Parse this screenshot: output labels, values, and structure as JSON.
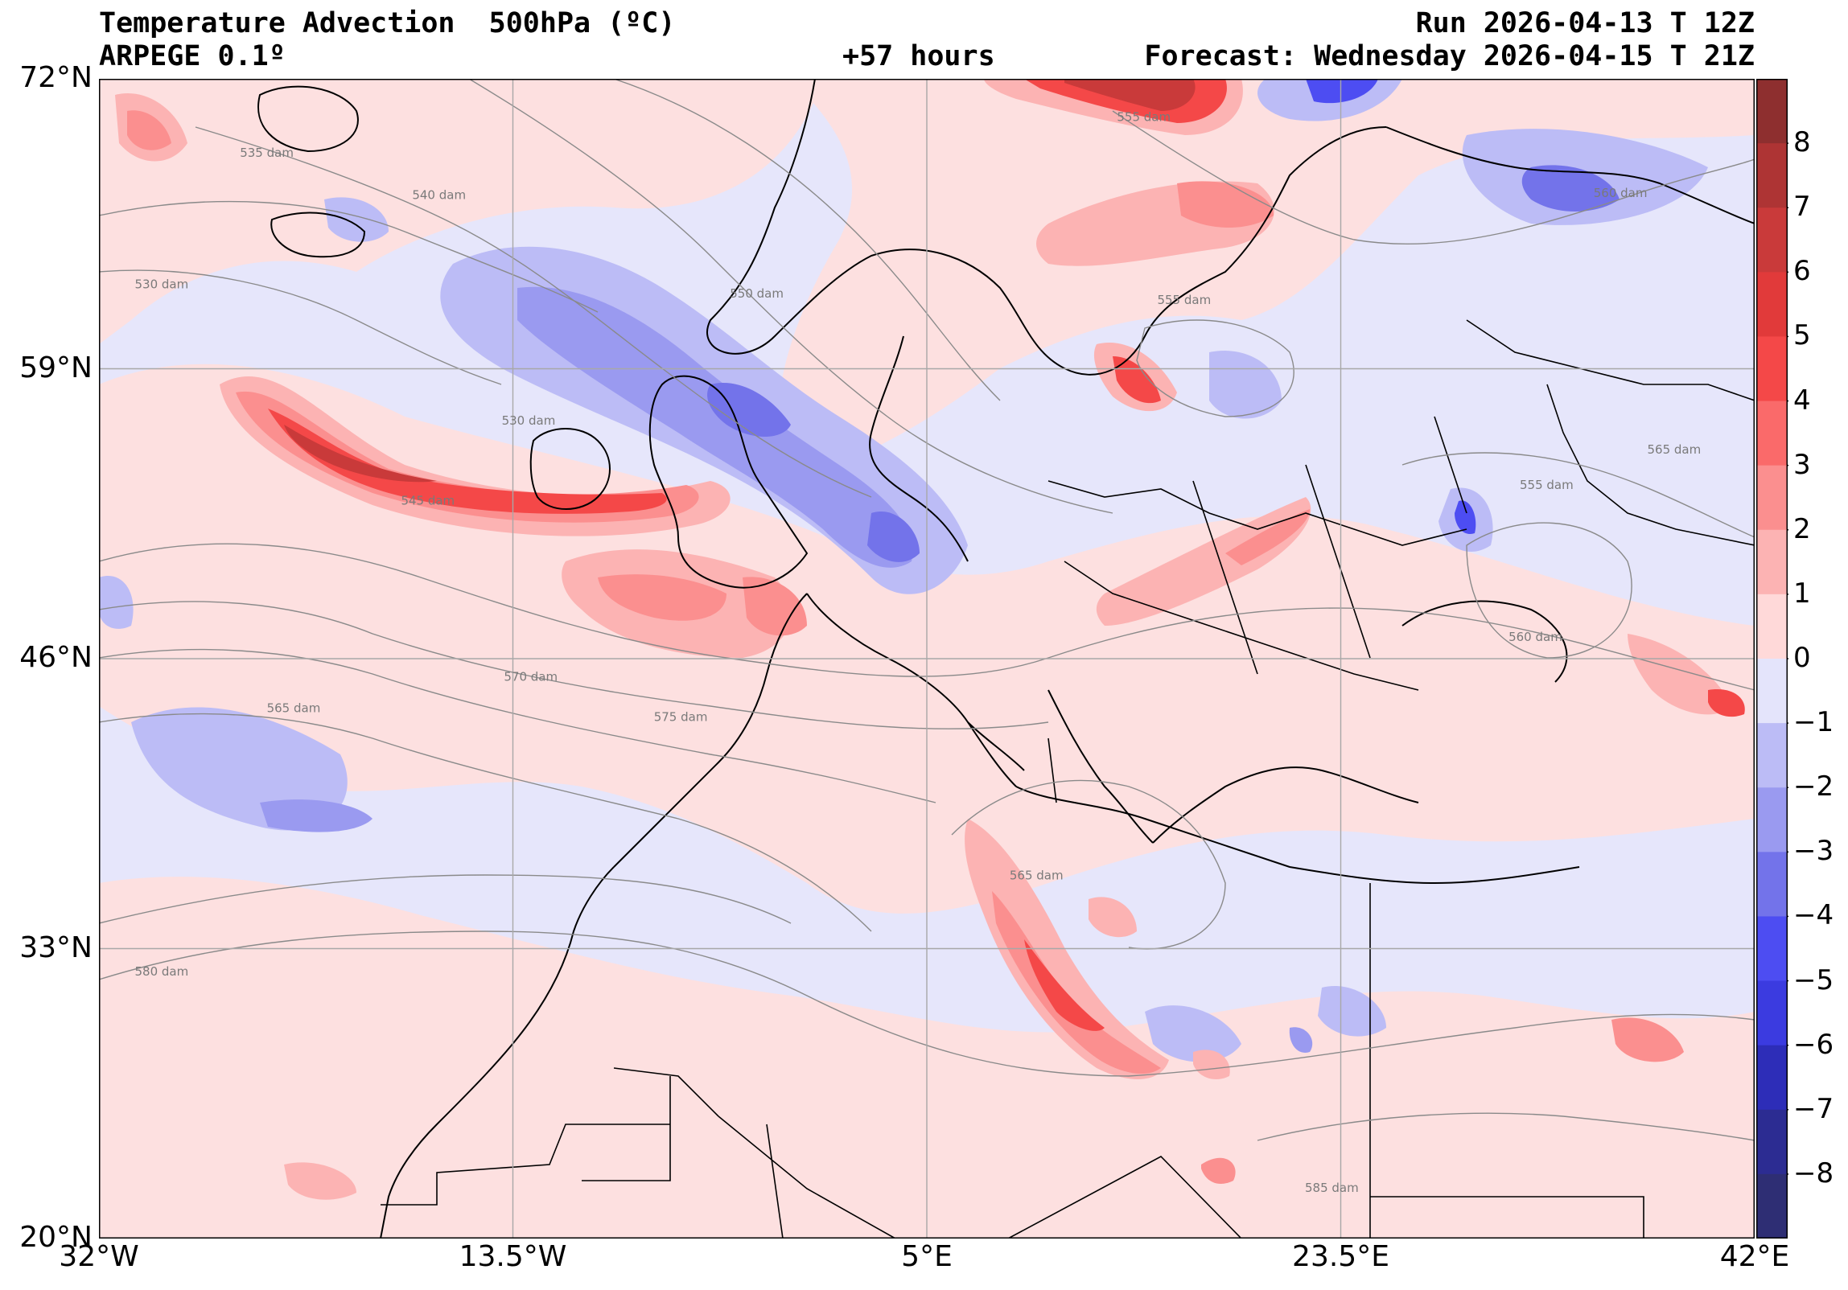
{
  "header": {
    "title": "Temperature Advection  500hPa (ºC)",
    "model": "ARPEGE 0.1º",
    "run": "Run 2026-04-13 T 12Z",
    "lead": "+57 hours",
    "forecast": "Forecast: Wednesday 2026-04-15 T 21Z"
  },
  "map": {
    "lat_range": [
      20,
      72
    ],
    "lon_range": [
      -32,
      42
    ],
    "lat_ticks": [
      {
        "value": 72,
        "label": "72°N"
      },
      {
        "value": 59,
        "label": "59°N"
      },
      {
        "value": 46,
        "label": "46°N"
      },
      {
        "value": 33,
        "label": "33°N"
      },
      {
        "value": 20,
        "label": "20°N"
      }
    ],
    "lon_ticks": [
      {
        "value": -32,
        "label": "32°W"
      },
      {
        "value": -13.5,
        "label": "13.5°W"
      },
      {
        "value": 5,
        "label": "5°E"
      },
      {
        "value": 23.5,
        "label": "23.5°E"
      },
      {
        "value": 42,
        "label": "42°E"
      }
    ],
    "contour_labels": [
      {
        "text": "535 dam",
        "lat": 68.5,
        "lon": -24.5
      },
      {
        "text": "540 dam",
        "lat": 66.6,
        "lon": -16.8
      },
      {
        "text": "530 dam",
        "lat": 62.6,
        "lon": -29.2
      },
      {
        "text": "550 dam",
        "lat": 62.2,
        "lon": -2.6
      },
      {
        "text": "530 dam",
        "lat": 56.5,
        "lon": -12.8
      },
      {
        "text": "545 dam",
        "lat": 52.9,
        "lon": -17.3
      },
      {
        "text": "555 dam",
        "lat": 70.1,
        "lon": 14.7
      },
      {
        "text": "555 dam",
        "lat": 61.9,
        "lon": 16.5
      },
      {
        "text": "560 dam",
        "lat": 66.7,
        "lon": 36.0
      },
      {
        "text": "565 dam",
        "lat": 55.2,
        "lon": 38.4
      },
      {
        "text": "555 dam",
        "lat": 53.6,
        "lon": 32.7
      },
      {
        "text": "560 dam",
        "lat": 46.8,
        "lon": 32.2
      },
      {
        "text": "570 dam",
        "lat": 45.0,
        "lon": -12.7
      },
      {
        "text": "565 dam",
        "lat": 43.6,
        "lon": -23.3
      },
      {
        "text": "575 dam",
        "lat": 43.2,
        "lon": -6.0
      },
      {
        "text": "565 dam",
        "lat": 36.1,
        "lon": 9.9
      },
      {
        "text": "580 dam",
        "lat": 31.8,
        "lon": -29.2
      },
      {
        "text": "585 dam",
        "lat": 22.1,
        "lon": 23.1
      }
    ]
  },
  "colorbar": {
    "ticks": [
      "8",
      "7",
      "6",
      "5",
      "4",
      "3",
      "2",
      "1",
      "0",
      "−1",
      "−2",
      "−3",
      "−4",
      "−5",
      "−6",
      "−7",
      "−8"
    ],
    "values": [
      9,
      8,
      7,
      6,
      5,
      4,
      3,
      2,
      1,
      0,
      -1,
      -2,
      -3,
      -4,
      -5,
      -6,
      -7,
      -8,
      -9
    ],
    "colors": [
      "#8e2f2f",
      "#ae3434",
      "#c93a3a",
      "#e13a3a",
      "#f44848",
      "#fa6a6a",
      "#fb8f8f",
      "#fcb3b3",
      "#ffd9d9",
      "#e4e4fb",
      "#bcbcf6",
      "#9a9af0",
      "#7373ea",
      "#4d4df2",
      "#3b3be0",
      "#2d2db8",
      "#2c2c92",
      "#2e2e74"
    ]
  }
}
